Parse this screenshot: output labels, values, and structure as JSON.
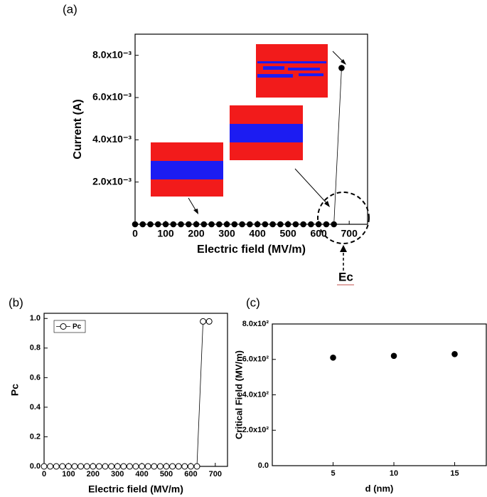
{
  "chart_data": [
    {
      "type": "line",
      "panel_label": "(a)",
      "xlabel": "Electric field (MV/m)",
      "ylabel": "Current (A)",
      "x": [
        0,
        25,
        50,
        75,
        100,
        125,
        150,
        175,
        200,
        225,
        250,
        275,
        300,
        325,
        350,
        375,
        400,
        425,
        450,
        475,
        500,
        525,
        550,
        575,
        600,
        625,
        650,
        675
      ],
      "series": [
        {
          "color": "#000000",
          "marker": "filled",
          "values": [
            0,
            0,
            0,
            0,
            0,
            0,
            0,
            0,
            0,
            0,
            0,
            0,
            0,
            0,
            0,
            0,
            0,
            0,
            0,
            0,
            0,
            0,
            0,
            0,
            0,
            0,
            0,
            0.0074
          ]
        }
      ],
      "xlim": [
        0,
        760
      ],
      "xticks": [
        0,
        100,
        200,
        300,
        400,
        500,
        600,
        700
      ],
      "ylim": [
        0,
        0.009
      ],
      "yticks": [
        {
          "value": 0.002,
          "label": "2.0x10⁻³"
        },
        {
          "value": 0.004,
          "label": "4.0x10⁻³"
        },
        {
          "value": 0.006,
          "label": "6.0x10⁻³"
        },
        {
          "value": 0.008,
          "label": "8.0x10⁻³"
        }
      ],
      "annotation": "Ec",
      "grid": false
    },
    {
      "type": "line",
      "panel_label": "(b)",
      "xlabel": "Electric field (MV/m)",
      "ylabel": "Pc",
      "x": [
        0,
        25,
        50,
        75,
        100,
        125,
        150,
        175,
        200,
        225,
        250,
        275,
        300,
        325,
        350,
        375,
        400,
        425,
        450,
        475,
        500,
        525,
        550,
        575,
        600,
        625,
        650,
        675
      ],
      "series": [
        {
          "name": "Pc",
          "color": "#000000",
          "marker": "open",
          "values": [
            0,
            0,
            0,
            0,
            0,
            0,
            0,
            0,
            0,
            0,
            0,
            0,
            0,
            0,
            0,
            0,
            0,
            0,
            0,
            0,
            0,
            0,
            0,
            0,
            0,
            0,
            0.98,
            0.98
          ]
        }
      ],
      "xlim": [
        0,
        750
      ],
      "xticks": [
        0,
        100,
        200,
        300,
        400,
        500,
        600,
        700
      ],
      "ylim": [
        0,
        1.035
      ],
      "yticks": [
        {
          "value": 0,
          "label": "0.0"
        },
        0.2,
        0.4,
        0.6,
        0.8,
        {
          "value": 1,
          "label": "1.0"
        }
      ],
      "legend": "upper-left",
      "grid": false
    },
    {
      "type": "scatter",
      "panel_label": "(c)",
      "xlabel": "d (nm)",
      "ylabel": "Critical Field (MV/m)",
      "x": [
        5,
        10,
        15
      ],
      "series": [
        {
          "color": "#000000",
          "marker": "filled",
          "values": [
            610,
            620,
            630
          ]
        }
      ],
      "xlim": [
        0,
        17.6
      ],
      "xticks": [
        5,
        10,
        15
      ],
      "ylim": [
        0,
        800
      ],
      "yticks": [
        {
          "value": 0,
          "label": "0.0"
        },
        {
          "value": 200,
          "label": "2.0x10²"
        },
        {
          "value": 400,
          "label": "4.0x10²"
        },
        {
          "value": 600,
          "label": "6.0x10²"
        },
        {
          "value": 800,
          "label": "8.0x10²"
        }
      ],
      "grid": false
    }
  ]
}
